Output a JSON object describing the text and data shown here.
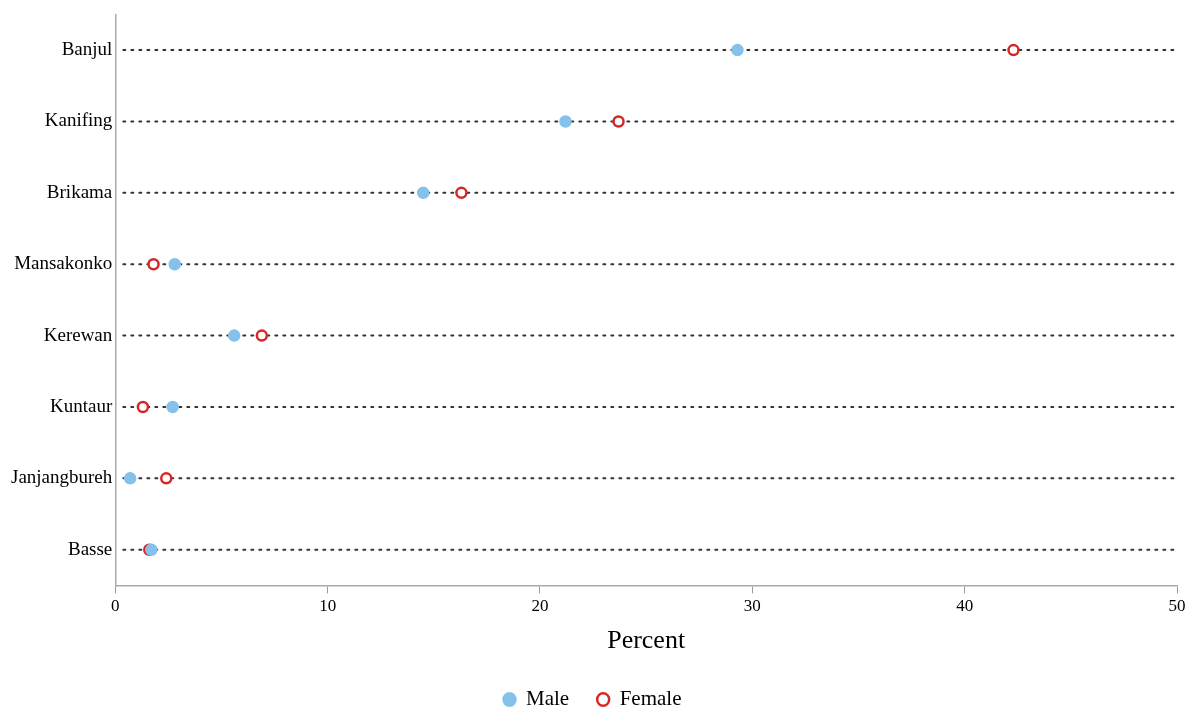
{
  "chart_data": {
    "type": "scatter",
    "orientation": "horizontal",
    "xlabel": "Percent",
    "categories": [
      "Banjul",
      "Kanifing",
      "Brikama",
      "Mansakonko",
      "Kerewan",
      "Kuntaur",
      "Janjangbureh",
      "Basse"
    ],
    "series": [
      {
        "name": "Female",
        "color": "#d62728",
        "values": [
          42.3,
          23.7,
          16.3,
          1.8,
          6.9,
          1.3,
          2.4,
          1.6
        ]
      },
      {
        "name": "Male",
        "color": "#85c1ea",
        "values": [
          29.3,
          21.2,
          14.5,
          2.8,
          5.6,
          2.7,
          0.7,
          1.7
        ]
      }
    ],
    "xlim": [
      0,
      50
    ],
    "xticks": [
      0,
      10,
      20,
      30,
      40,
      50
    ],
    "grid": "y",
    "marker": "circle",
    "legend": "bottom"
  }
}
